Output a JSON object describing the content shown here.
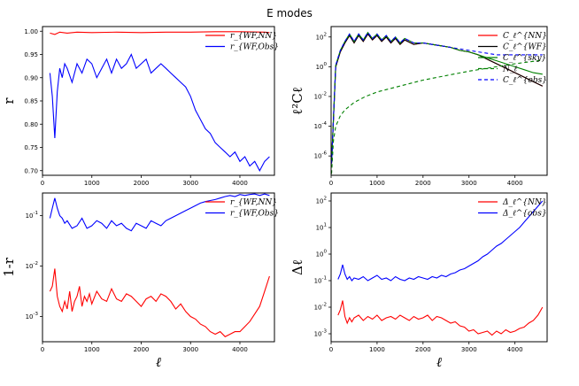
{
  "figure": {
    "title": "E modes"
  },
  "chart_data": [
    {
      "type": "line",
      "ylabel": "r",
      "xlabel": "",
      "xlim": [
        0,
        4700
      ],
      "ylim": [
        0.69,
        1.01
      ],
      "yscale": "linear",
      "xticks": [
        0,
        1000,
        2000,
        3000,
        4000
      ],
      "yticks": [
        0.7,
        0.75,
        0.8,
        0.85,
        0.9,
        0.95,
        1.0
      ],
      "ytick_labels": [
        "0.70",
        "0.75",
        "0.80",
        "0.85",
        "0.90",
        "0.95",
        "1.00"
      ],
      "legend": "top-right",
      "series": [
        {
          "name": "r_{WF,NN}",
          "color": "#ff0000",
          "dash": "",
          "x": [
            150,
            250,
            350,
            500,
            700,
            1000,
            1500,
            2000,
            2500,
            3000,
            3500,
            4000,
            4500,
            4600
          ],
          "y": [
            0.996,
            0.993,
            0.998,
            0.996,
            0.998,
            0.997,
            0.998,
            0.997,
            0.998,
            0.998,
            0.999,
            0.999,
            0.998,
            0.997
          ]
        },
        {
          "name": "r_{WF,Obs}",
          "color": "#0000ff",
          "dash": "",
          "x": [
            150,
            200,
            250,
            300,
            350,
            400,
            450,
            500,
            600,
            700,
            800,
            900,
            1000,
            1100,
            1200,
            1300,
            1400,
            1500,
            1600,
            1700,
            1800,
            1900,
            2000,
            2100,
            2200,
            2300,
            2400,
            2500,
            2600,
            2700,
            2800,
            2900,
            3000,
            3100,
            3200,
            3300,
            3400,
            3500,
            3600,
            3700,
            3800,
            3900,
            4000,
            4100,
            4200,
            4300,
            4400,
            4500,
            4600
          ],
          "y": [
            0.91,
            0.86,
            0.77,
            0.87,
            0.92,
            0.9,
            0.93,
            0.92,
            0.89,
            0.93,
            0.91,
            0.94,
            0.93,
            0.9,
            0.92,
            0.94,
            0.91,
            0.94,
            0.92,
            0.93,
            0.95,
            0.92,
            0.93,
            0.94,
            0.91,
            0.92,
            0.93,
            0.92,
            0.91,
            0.9,
            0.89,
            0.88,
            0.86,
            0.83,
            0.81,
            0.79,
            0.78,
            0.76,
            0.75,
            0.74,
            0.73,
            0.74,
            0.72,
            0.73,
            0.71,
            0.72,
            0.7,
            0.72,
            0.73
          ]
        }
      ]
    },
    {
      "type": "line",
      "ylabel": "ℓ²Cℓ",
      "xlabel": "",
      "xlim": [
        0,
        4700
      ],
      "ylim": [
        -7.3,
        2.7
      ],
      "yscale": "log",
      "xticks": [
        0,
        1000,
        2000,
        3000,
        4000
      ],
      "yticks": [
        -6,
        -4,
        -2,
        0,
        2
      ],
      "legend": "top-right",
      "series": [
        {
          "name": "C_ℓ^{NN}",
          "color": "#ff0000",
          "dash": "",
          "x": [
            10,
            100,
            200,
            300,
            400,
            500,
            600,
            700,
            800,
            900,
            1000,
            1100,
            1200,
            1300,
            1400,
            1500,
            1600,
            1800,
            2000,
            2200,
            2400,
            2600,
            2800,
            3000,
            3200,
            3400,
            3600,
            3800,
            4000,
            4200,
            4400,
            4600
          ],
          "y": [
            -6.5,
            0.0,
            1.0,
            1.6,
            2.1,
            1.6,
            2.1,
            1.7,
            2.2,
            1.8,
            2.1,
            1.7,
            2.0,
            1.6,
            1.9,
            1.5,
            1.8,
            1.5,
            1.6,
            1.5,
            1.4,
            1.3,
            1.1,
            1.0,
            0.8,
            0.5,
            0.2,
            -0.1,
            -0.4,
            -0.7,
            -1.0,
            -1.3
          ]
        },
        {
          "name": "C_ℓ^{WF}",
          "color": "#000000",
          "dash": "",
          "x": [
            10,
            100,
            200,
            300,
            400,
            500,
            600,
            700,
            800,
            900,
            1000,
            1100,
            1200,
            1300,
            1400,
            1500,
            1600,
            1800,
            2000,
            2200,
            2400,
            2600,
            2800,
            3000,
            3200,
            3400,
            3600,
            3800,
            4000,
            4200,
            4400,
            4600
          ],
          "y": [
            -6.5,
            0.0,
            1.0,
            1.6,
            2.1,
            1.6,
            2.1,
            1.7,
            2.2,
            1.8,
            2.1,
            1.7,
            2.0,
            1.6,
            1.9,
            1.5,
            1.8,
            1.5,
            1.6,
            1.5,
            1.4,
            1.3,
            1.1,
            1.0,
            0.8,
            0.5,
            0.2,
            -0.1,
            -0.4,
            -0.7,
            -1.0,
            -1.3
          ]
        },
        {
          "name": "C_ℓ^{sky}",
          "color": "#008000",
          "dash": "",
          "x": [
            10,
            100,
            200,
            300,
            400,
            500,
            600,
            700,
            800,
            900,
            1000,
            1100,
            1200,
            1300,
            1400,
            1500,
            1600,
            1800,
            2000,
            2200,
            2400,
            2600,
            2800,
            3000,
            3200,
            3400,
            3600,
            3800,
            4000,
            4200,
            4400,
            4600
          ],
          "y": [
            -6.5,
            0.1,
            1.1,
            1.7,
            2.2,
            1.7,
            2.2,
            1.8,
            2.3,
            1.9,
            2.2,
            1.8,
            2.1,
            1.7,
            2.0,
            1.6,
            1.9,
            1.6,
            1.6,
            1.5,
            1.4,
            1.3,
            1.1,
            1.0,
            0.8,
            0.6,
            0.4,
            0.2,
            0.0,
            -0.2,
            -0.4,
            -0.5
          ]
        },
        {
          "name": "N_ℓ",
          "color": "#008000",
          "dash": "4,3",
          "x": [
            10,
            50,
            100,
            200,
            300,
            500,
            750,
            1000,
            1500,
            2000,
            2500,
            3000,
            3500,
            4000,
            4500,
            4600
          ],
          "y": [
            -7.2,
            -5.0,
            -4.0,
            -3.3,
            -2.9,
            -2.4,
            -2.0,
            -1.7,
            -1.3,
            -0.9,
            -0.6,
            -0.3,
            -0.05,
            0.2,
            0.4,
            0.45
          ]
        },
        {
          "name": "C_ℓ^{obs}",
          "color": "#0000ff",
          "dash": "4,3",
          "x": [
            10,
            100,
            200,
            300,
            400,
            500,
            600,
            700,
            800,
            900,
            1000,
            1100,
            1200,
            1300,
            1400,
            1500,
            1600,
            1800,
            2000,
            2200,
            2400,
            2600,
            2800,
            3000,
            3200,
            3400,
            3600,
            3800,
            4000,
            4200,
            4400,
            4600
          ],
          "y": [
            -6.5,
            0.1,
            1.1,
            1.7,
            2.2,
            1.7,
            2.2,
            1.8,
            2.3,
            1.9,
            2.2,
            1.8,
            2.1,
            1.7,
            2.0,
            1.6,
            1.9,
            1.6,
            1.6,
            1.5,
            1.4,
            1.3,
            1.2,
            1.1,
            1.0,
            0.9,
            0.8,
            0.8,
            0.8,
            0.8,
            0.8,
            0.8
          ]
        }
      ]
    },
    {
      "type": "line",
      "ylabel": "1-r",
      "xlabel": "ℓ",
      "xlim": [
        0,
        4700
      ],
      "ylim": [
        -3.5,
        -0.55
      ],
      "yscale": "log",
      "xticks": [
        0,
        1000,
        2000,
        3000,
        4000
      ],
      "yticks": [
        -3,
        -2,
        -1
      ],
      "legend": "top-right",
      "series": [
        {
          "name": "r_{WF,NN}",
          "color": "#ff0000",
          "dash": "",
          "x": [
            150,
            200,
            250,
            300,
            350,
            400,
            450,
            500,
            550,
            600,
            650,
            700,
            750,
            800,
            850,
            900,
            950,
            1000,
            1100,
            1200,
            1300,
            1400,
            1500,
            1600,
            1700,
            1800,
            1900,
            2000,
            2100,
            2200,
            2300,
            2400,
            2500,
            2600,
            2700,
            2800,
            2900,
            3000,
            3100,
            3200,
            3300,
            3400,
            3500,
            3600,
            3700,
            3800,
            3900,
            4000,
            4100,
            4200,
            4300,
            4400,
            4500,
            4600
          ],
          "y": [
            -2.5,
            -2.4,
            -2.05,
            -2.6,
            -2.8,
            -2.9,
            -2.7,
            -2.85,
            -2.5,
            -2.9,
            -2.7,
            -2.6,
            -2.4,
            -2.8,
            -2.6,
            -2.7,
            -2.55,
            -2.75,
            -2.5,
            -2.65,
            -2.7,
            -2.45,
            -2.65,
            -2.7,
            -2.55,
            -2.6,
            -2.7,
            -2.8,
            -2.65,
            -2.6,
            -2.7,
            -2.55,
            -2.6,
            -2.7,
            -2.85,
            -2.75,
            -2.9,
            -3.0,
            -3.05,
            -3.15,
            -3.2,
            -3.3,
            -3.35,
            -3.3,
            -3.4,
            -3.35,
            -3.3,
            -3.3,
            -3.2,
            -3.1,
            -2.95,
            -2.8,
            -2.5,
            -2.2
          ]
        },
        {
          "name": "r_{WF,Obs}",
          "color": "#0000ff",
          "dash": "",
          "x": [
            150,
            200,
            250,
            300,
            350,
            400,
            450,
            500,
            600,
            700,
            800,
            900,
            1000,
            1100,
            1200,
            1300,
            1400,
            1500,
            1600,
            1700,
            1800,
            1900,
            2000,
            2100,
            2200,
            2300,
            2400,
            2500,
            2600,
            2700,
            2800,
            2900,
            3000,
            3100,
            3200,
            3300,
            3400,
            3500,
            3600,
            3700,
            3800,
            3900,
            4000,
            4100,
            4200,
            4300,
            4400,
            4500,
            4600
          ],
          "y": [
            -1.05,
            -0.85,
            -0.65,
            -0.85,
            -1.0,
            -1.05,
            -1.15,
            -1.1,
            -1.25,
            -1.2,
            -1.05,
            -1.25,
            -1.2,
            -1.1,
            -1.15,
            -1.25,
            -1.1,
            -1.2,
            -1.15,
            -1.25,
            -1.3,
            -1.15,
            -1.2,
            -1.25,
            -1.1,
            -1.15,
            -1.2,
            -1.1,
            -1.05,
            -1.0,
            -0.95,
            -0.9,
            -0.85,
            -0.8,
            -0.75,
            -0.72,
            -0.7,
            -0.68,
            -0.65,
            -0.62,
            -0.6,
            -0.62,
            -0.58,
            -0.6,
            -0.58,
            -0.57,
            -0.6,
            -0.57,
            -0.6
          ]
        }
      ]
    },
    {
      "type": "line",
      "ylabel": "Δℓ",
      "xlabel": "ℓ",
      "xlim": [
        0,
        4700
      ],
      "ylim": [
        -3.3,
        2.3
      ],
      "yscale": "log",
      "xticks": [
        0,
        1000,
        2000,
        3000,
        4000
      ],
      "yticks": [
        -3,
        -2,
        -1,
        0,
        1,
        2
      ],
      "legend": "top-right",
      "series": [
        {
          "name": "Δ_ℓ^{NN}",
          "color": "#ff0000",
          "dash": "",
          "x": [
            150,
            200,
            250,
            300,
            350,
            400,
            450,
            500,
            600,
            700,
            800,
            900,
            1000,
            1100,
            1200,
            1300,
            1400,
            1500,
            1600,
            1700,
            1800,
            1900,
            2000,
            2100,
            2200,
            2300,
            2400,
            2500,
            2600,
            2700,
            2800,
            2900,
            3000,
            3100,
            3200,
            3300,
            3400,
            3500,
            3600,
            3700,
            3800,
            3900,
            4000,
            4100,
            4200,
            4300,
            4400,
            4500,
            4600
          ],
          "y": [
            -2.3,
            -2.1,
            -1.75,
            -2.35,
            -2.6,
            -2.4,
            -2.55,
            -2.4,
            -2.3,
            -2.5,
            -2.35,
            -2.45,
            -2.3,
            -2.5,
            -2.4,
            -2.35,
            -2.45,
            -2.3,
            -2.4,
            -2.5,
            -2.35,
            -2.45,
            -2.4,
            -2.3,
            -2.5,
            -2.35,
            -2.4,
            -2.5,
            -2.6,
            -2.55,
            -2.7,
            -2.75,
            -2.9,
            -2.85,
            -3.0,
            -2.95,
            -2.9,
            -3.05,
            -2.9,
            -3.0,
            -2.85,
            -2.95,
            -2.9,
            -2.8,
            -2.75,
            -2.6,
            -2.5,
            -2.3,
            -2.0
          ]
        },
        {
          "name": "Δ_ℓ^{obs}",
          "color": "#0000ff",
          "dash": "",
          "x": [
            150,
            200,
            250,
            300,
            350,
            400,
            450,
            500,
            600,
            700,
            800,
            900,
            1000,
            1100,
            1200,
            1300,
            1400,
            1500,
            1600,
            1700,
            1800,
            1900,
            2000,
            2100,
            2200,
            2300,
            2400,
            2500,
            2600,
            2700,
            2800,
            2900,
            3000,
            3100,
            3200,
            3300,
            3400,
            3500,
            3600,
            3700,
            3800,
            3900,
            4000,
            4100,
            4200,
            4300,
            4400,
            4500,
            4600
          ],
          "y": [
            -0.95,
            -0.75,
            -0.4,
            -0.75,
            -0.95,
            -0.85,
            -1.0,
            -0.9,
            -0.95,
            -0.85,
            -1.0,
            -0.9,
            -0.8,
            -0.95,
            -0.9,
            -1.0,
            -0.85,
            -0.95,
            -1.0,
            -0.9,
            -0.95,
            -0.85,
            -0.9,
            -0.95,
            -0.85,
            -0.9,
            -0.8,
            -0.85,
            -0.75,
            -0.7,
            -0.6,
            -0.55,
            -0.45,
            -0.35,
            -0.25,
            -0.1,
            0.0,
            0.15,
            0.3,
            0.4,
            0.55,
            0.7,
            0.85,
            1.0,
            1.2,
            1.4,
            1.6,
            1.8,
            2.0
          ]
        }
      ]
    }
  ]
}
